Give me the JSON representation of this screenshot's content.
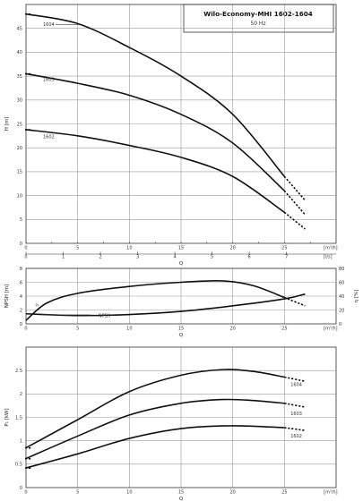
{
  "title_box": {
    "title": "Wilo-Economy-MHI 1602-1604",
    "subtitle": "50 Hz"
  },
  "chart_data": [
    {
      "type": "line",
      "ylabel": "H [m]",
      "xlabel_top": "[m³/h]",
      "xlabel_bottom": "[l/s]",
      "q_label": "Q",
      "xlim": [
        0,
        30
      ],
      "ylim": [
        0,
        50
      ],
      "x_ticks": [
        "0",
        "5",
        "10",
        "15",
        "20",
        "25"
      ],
      "x_ticks_ls": [
        "0",
        "1",
        "2",
        "3",
        "4",
        "5",
        "6",
        "7"
      ],
      "y_ticks": [
        "0",
        "5",
        "10",
        "15",
        "20",
        "25",
        "30",
        "35",
        "40",
        "45"
      ],
      "grid": true,
      "series": [
        {
          "name": "1604",
          "x": [
            0,
            5,
            10,
            15,
            20,
            25
          ],
          "y": [
            48,
            46,
            41,
            35,
            27,
            14
          ],
          "x_ext": [
            27
          ],
          "y_ext": [
            9
          ]
        },
        {
          "name": "1603",
          "x": [
            0,
            5,
            10,
            15,
            20,
            25
          ],
          "y": [
            35.5,
            33.5,
            31,
            27,
            21,
            11
          ],
          "x_ext": [
            27
          ],
          "y_ext": [
            6
          ]
        },
        {
          "name": "1602",
          "x": [
            0,
            5,
            10,
            15,
            20,
            25
          ],
          "y": [
            23.8,
            22.5,
            20.5,
            18,
            14,
            6.5
          ],
          "x_ext": [
            27
          ],
          "y_ext": [
            3
          ]
        }
      ]
    },
    {
      "type": "line",
      "ylabel": "NPSH [m]",
      "ylabel_right": "η [%]",
      "xlabel": "[m³/h]",
      "q_label": "Q",
      "xlim": [
        0,
        30
      ],
      "ylim": [
        0,
        8
      ],
      "ylim_right": [
        0,
        80
      ],
      "x_ticks": [
        "0",
        "5",
        "10",
        "15",
        "20",
        "25"
      ],
      "y_ticks": [
        "0",
        "2",
        "4",
        "6",
        "8"
      ],
      "y_ticks_right": [
        "0",
        "20",
        "40",
        "60",
        "80"
      ],
      "grid": true,
      "series": [
        {
          "name": "η",
          "axis": "right",
          "x": [
            0,
            2,
            5,
            10,
            15,
            19,
            22,
            25
          ],
          "y": [
            5,
            30,
            44,
            54,
            60,
            62,
            55,
            38
          ],
          "x_ext": [
            27
          ],
          "y_ext": [
            26
          ]
        },
        {
          "name": "NPSH",
          "axis": "left",
          "x": [
            0,
            5,
            10,
            15,
            20,
            25,
            27
          ],
          "y": [
            1.45,
            1.2,
            1.35,
            1.8,
            2.6,
            3.6,
            4.3
          ]
        }
      ]
    },
    {
      "type": "line",
      "ylabel": "P₁ [kW]",
      "xlabel": "[m³/h]",
      "q_label": "Q",
      "xlim": [
        0,
        30
      ],
      "ylim": [
        0,
        3
      ],
      "x_ticks": [
        "0",
        "5",
        "10",
        "15",
        "20",
        "25"
      ],
      "y_ticks": [
        "0",
        "0.5",
        "1",
        "1.5",
        "2",
        "2.5"
      ],
      "grid": true,
      "series": [
        {
          "name": "1604",
          "x": [
            0,
            5,
            10,
            15,
            19,
            22,
            25
          ],
          "y": [
            0.85,
            1.45,
            2.05,
            2.4,
            2.52,
            2.48,
            2.36
          ],
          "x_ext": [
            27
          ],
          "y_ext": [
            2.27
          ]
        },
        {
          "name": "1603",
          "x": [
            0,
            5,
            10,
            15,
            19,
            22,
            25
          ],
          "y": [
            0.62,
            1.1,
            1.55,
            1.8,
            1.88,
            1.86,
            1.8
          ],
          "x_ext": [
            27
          ],
          "y_ext": [
            1.72
          ]
        },
        {
          "name": "1602",
          "x": [
            0,
            5,
            10,
            15,
            20,
            25
          ],
          "y": [
            0.42,
            0.72,
            1.05,
            1.26,
            1.32,
            1.28
          ],
          "x_ext": [
            27
          ],
          "y_ext": [
            1.22
          ]
        }
      ]
    }
  ]
}
